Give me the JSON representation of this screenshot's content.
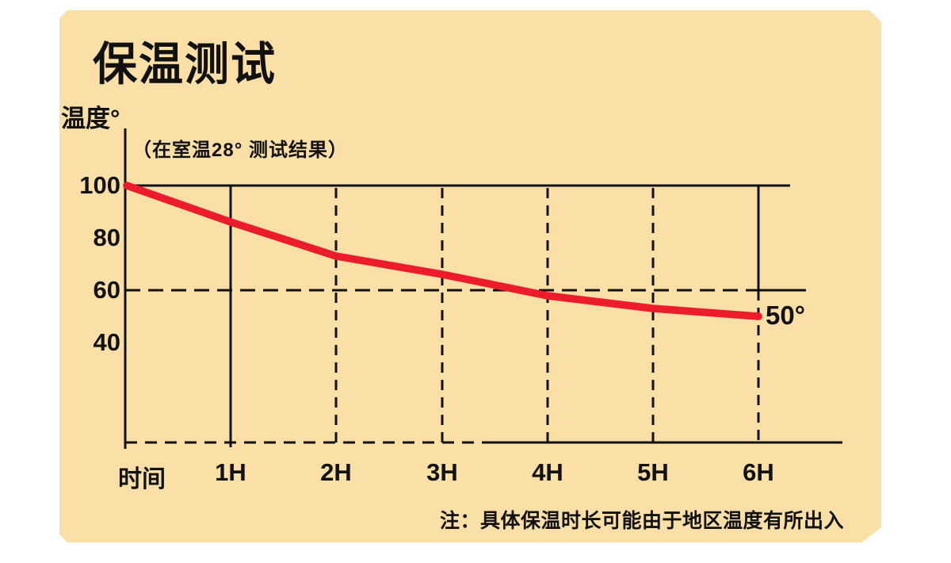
{
  "header": {
    "title": "保温测试",
    "subtitle": "（在室温28° 测试结果）",
    "y_axis_label": "温度°",
    "x_axis_label": "时间"
  },
  "annotation": {
    "end_label": "50°"
  },
  "note": {
    "text": "注：具体保温时长可能由于地区温度有所出入"
  },
  "colors": {
    "panel_bg": "#fae0a6",
    "line": "#ec1c2c",
    "axis": "#111111",
    "text": "#111111",
    "page_bg": "#ffffff"
  },
  "chart_data": {
    "type": "line",
    "title": "保温测试",
    "subtitle": "（在室温28° 测试结果）",
    "xlabel": "时间",
    "ylabel": "温度°",
    "x_tick_labels": [
      "1H",
      "2H",
      "3H",
      "4H",
      "5H",
      "6H"
    ],
    "y_tick_labels": [
      100,
      80,
      60,
      40
    ],
    "x_hours": [
      0,
      1,
      2,
      3,
      4,
      5,
      6
    ],
    "values": [
      100,
      86,
      73,
      66,
      58,
      53,
      50
    ],
    "end_annotation": "50°",
    "ylim": [
      40,
      100
    ],
    "grid": "dashed vertical per hour; dashed horizontal at 60; solid top border at 100",
    "legend": "none",
    "line_color": "#ec1c2c"
  }
}
